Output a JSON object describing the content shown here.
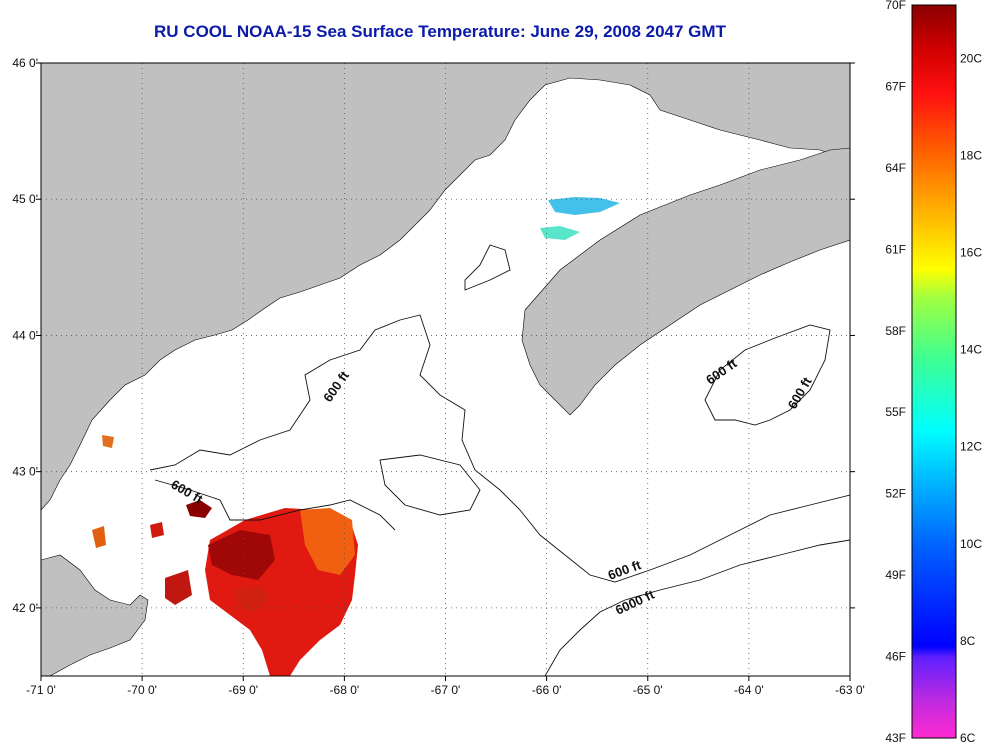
{
  "title": "RU COOL  NOAA-15  Sea Surface Temperature:  June 29, 2008 2047 GMT",
  "map": {
    "lon_range": [
      -71,
      -63
    ],
    "lat_range": [
      41.5,
      46
    ],
    "lon_ticks": [
      {
        "value": -71,
        "label": "-71 0'"
      },
      {
        "value": -70,
        "label": "-70 0'"
      },
      {
        "value": -69,
        "label": "-69 0'"
      },
      {
        "value": -68,
        "label": "-68 0'"
      },
      {
        "value": -67,
        "label": "-67 0'"
      },
      {
        "value": -66,
        "label": "-66 0'"
      },
      {
        "value": -65,
        "label": "-65 0'"
      },
      {
        "value": -64,
        "label": "-64 0'"
      },
      {
        "value": -63,
        "label": "-63 0'"
      }
    ],
    "lat_ticks": [
      {
        "value": 46,
        "label": "46 0'"
      },
      {
        "value": 45,
        "label": "45 0'"
      },
      {
        "value": 44,
        "label": "44 0'"
      },
      {
        "value": 43,
        "label": "43 0'"
      },
      {
        "value": 42,
        "label": "42 0'"
      }
    ],
    "grid": "dotted",
    "land_color": "#c0c0c0",
    "contour_labels": [
      "600 ft",
      "600 ft",
      "600 ft",
      "600 ft",
      "600 ft",
      "6000 ft"
    ]
  },
  "colorbar": {
    "fahrenheit_labels": [
      "70F",
      "67F",
      "64F",
      "61F",
      "58F",
      "55F",
      "52F",
      "49F",
      "46F",
      "43F"
    ],
    "celsius_labels": [
      "20C",
      "18C",
      "16C",
      "14C",
      "12C",
      "10C",
      "8C",
      "6C"
    ],
    "range_c": [
      6,
      21.1
    ]
  }
}
